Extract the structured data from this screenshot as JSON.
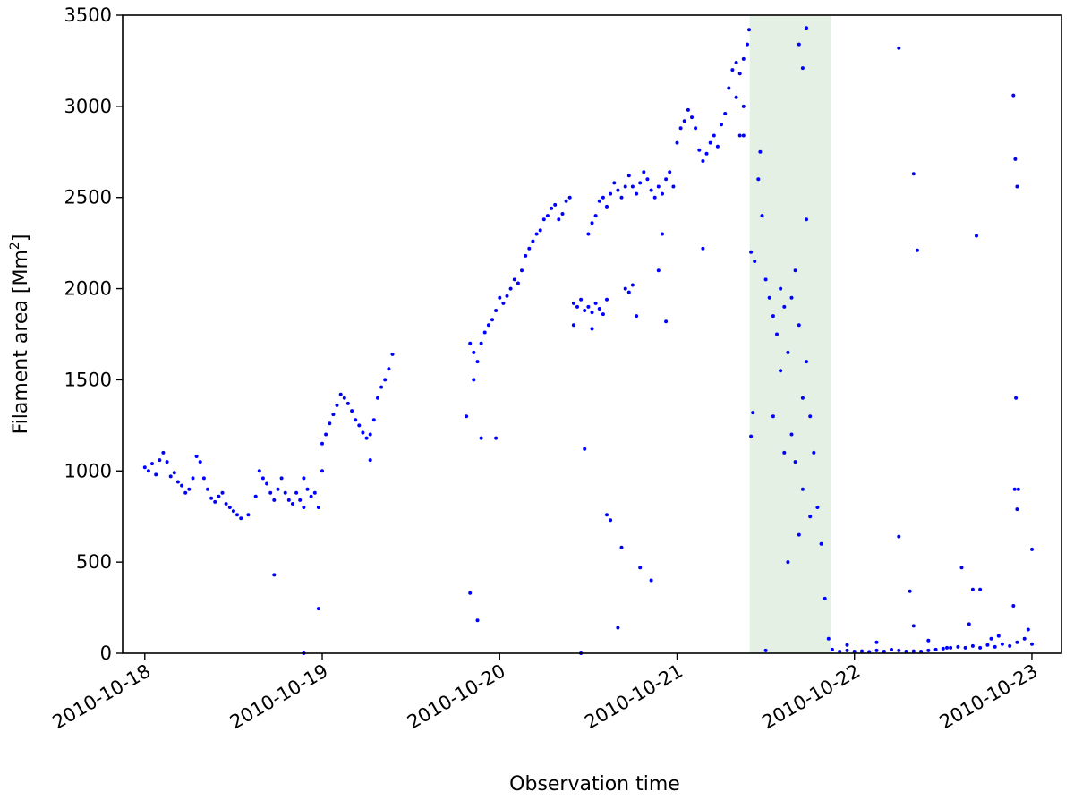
{
  "chart_data": {
    "type": "scatter",
    "xlabel": "Observation time",
    "ylabel": "Filament area [Mm",
    "ylabel_sup": "2",
    "ylabel_close": "]",
    "ylim": [
      0,
      3500
    ],
    "xlim": [
      "2010-10-17T21:00",
      "2010-10-23T04:00"
    ],
    "yticks": [
      0,
      500,
      1000,
      1500,
      2000,
      2500,
      3000,
      3500
    ],
    "xticks": [
      {
        "date": "2010-10-18",
        "label": "2010-10-18"
      },
      {
        "date": "2010-10-19",
        "label": "2010-10-19"
      },
      {
        "date": "2010-10-20",
        "label": "2010-10-20"
      },
      {
        "date": "2010-10-21",
        "label": "2010-10-21"
      },
      {
        "date": "2010-10-22",
        "label": "2010-10-22"
      },
      {
        "date": "2010-10-23",
        "label": "2010-10-23"
      }
    ],
    "shaded_interval": {
      "start": "2010-10-21T09:50",
      "end": "2010-10-21T20:50",
      "color": "#e3f0e3"
    },
    "point_color": "#0000ff",
    "grid": false,
    "points": [
      [
        "2010-10-18T00:00",
        1020
      ],
      [
        "2010-10-18T00:30",
        1000
      ],
      [
        "2010-10-18T01:00",
        1040
      ],
      [
        "2010-10-18T01:30",
        980
      ],
      [
        "2010-10-18T02:00",
        1060
      ],
      [
        "2010-10-18T02:30",
        1100
      ],
      [
        "2010-10-18T03:00",
        1050
      ],
      [
        "2010-10-18T03:30",
        970
      ],
      [
        "2010-10-18T04:00",
        990
      ],
      [
        "2010-10-18T04:30",
        940
      ],
      [
        "2010-10-18T05:00",
        920
      ],
      [
        "2010-10-18T05:30",
        880
      ],
      [
        "2010-10-18T06:00",
        900
      ],
      [
        "2010-10-18T06:30",
        960
      ],
      [
        "2010-10-18T07:00",
        1080
      ],
      [
        "2010-10-18T07:30",
        1050
      ],
      [
        "2010-10-18T08:00",
        960
      ],
      [
        "2010-10-18T08:30",
        900
      ],
      [
        "2010-10-18T09:00",
        850
      ],
      [
        "2010-10-18T09:30",
        830
      ],
      [
        "2010-10-18T10:00",
        860
      ],
      [
        "2010-10-18T10:30",
        880
      ],
      [
        "2010-10-18T11:00",
        820
      ],
      [
        "2010-10-18T11:30",
        800
      ],
      [
        "2010-10-18T12:00",
        780
      ],
      [
        "2010-10-18T12:30",
        760
      ],
      [
        "2010-10-18T13:00",
        740
      ],
      [
        "2010-10-18T14:00",
        760
      ],
      [
        "2010-10-18T15:00",
        860
      ],
      [
        "2010-10-18T15:30",
        1000
      ],
      [
        "2010-10-18T16:00",
        960
      ],
      [
        "2010-10-18T16:30",
        930
      ],
      [
        "2010-10-18T17:00",
        880
      ],
      [
        "2010-10-18T17:30",
        840
      ],
      [
        "2010-10-18T18:00",
        900
      ],
      [
        "2010-10-18T18:30",
        960
      ],
      [
        "2010-10-18T19:00",
        880
      ],
      [
        "2010-10-18T19:30",
        840
      ],
      [
        "2010-10-18T20:00",
        820
      ],
      [
        "2010-10-18T20:30",
        880
      ],
      [
        "2010-10-18T21:00",
        840
      ],
      [
        "2010-10-18T21:30",
        800
      ],
      [
        "2010-10-18T22:00",
        900
      ],
      [
        "2010-10-18T22:30",
        860
      ],
      [
        "2010-10-18T23:00",
        880
      ],
      [
        "2010-10-18T23:30",
        800
      ],
      [
        "2010-10-18T17:30",
        430
      ],
      [
        "2010-10-18T21:30",
        960
      ],
      [
        "2010-10-19T00:00",
        1150
      ],
      [
        "2010-10-19T00:30",
        1200
      ],
      [
        "2010-10-19T01:00",
        1260
      ],
      [
        "2010-10-19T01:30",
        1310
      ],
      [
        "2010-10-19T02:00",
        1360
      ],
      [
        "2010-10-19T02:30",
        1420
      ],
      [
        "2010-10-19T03:00",
        1400
      ],
      [
        "2010-10-19T03:30",
        1370
      ],
      [
        "2010-10-19T04:00",
        1330
      ],
      [
        "2010-10-19T04:30",
        1280
      ],
      [
        "2010-10-19T05:00",
        1250
      ],
      [
        "2010-10-19T05:30",
        1210
      ],
      [
        "2010-10-19T06:00",
        1180
      ],
      [
        "2010-10-19T06:30",
        1200
      ],
      [
        "2010-10-19T07:00",
        1280
      ],
      [
        "2010-10-19T07:30",
        1400
      ],
      [
        "2010-10-19T08:00",
        1460
      ],
      [
        "2010-10-19T08:30",
        1500
      ],
      [
        "2010-10-19T09:00",
        1560
      ],
      [
        "2010-10-19T09:30",
        1640
      ],
      [
        "2010-10-19T00:00",
        1000
      ],
      [
        "2010-10-18T23:30",
        245
      ],
      [
        "2010-10-18T21:30",
        0
      ],
      [
        "2010-10-19T06:30",
        1060
      ],
      [
        "2010-10-19T20:00",
        1700
      ],
      [
        "2010-10-19T20:30",
        1650
      ],
      [
        "2010-10-19T21:00",
        1600
      ],
      [
        "2010-10-19T21:30",
        1700
      ],
      [
        "2010-10-19T22:00",
        1760
      ],
      [
        "2010-10-19T22:30",
        1800
      ],
      [
        "2010-10-19T23:00",
        1830
      ],
      [
        "2010-10-19T23:30",
        1880
      ],
      [
        "2010-10-19T20:30",
        1500
      ],
      [
        "2010-10-19T21:30",
        1180
      ],
      [
        "2010-10-19T23:30",
        1180
      ],
      [
        "2010-10-19T20:00",
        330
      ],
      [
        "2010-10-19T21:00",
        180
      ],
      [
        "2010-10-19T19:30",
        1300
      ],
      [
        "2010-10-20T00:00",
        1950
      ],
      [
        "2010-10-20T00:30",
        1920
      ],
      [
        "2010-10-20T01:00",
        1960
      ],
      [
        "2010-10-20T01:30",
        2000
      ],
      [
        "2010-10-20T02:00",
        2050
      ],
      [
        "2010-10-20T02:30",
        2030
      ],
      [
        "2010-10-20T03:00",
        2100
      ],
      [
        "2010-10-20T03:30",
        2180
      ],
      [
        "2010-10-20T04:00",
        2220
      ],
      [
        "2010-10-20T04:30",
        2260
      ],
      [
        "2010-10-20T05:00",
        2300
      ],
      [
        "2010-10-20T05:30",
        2320
      ],
      [
        "2010-10-20T06:00",
        2380
      ],
      [
        "2010-10-20T06:30",
        2400
      ],
      [
        "2010-10-20T07:00",
        2440
      ],
      [
        "2010-10-20T07:30",
        2460
      ],
      [
        "2010-10-20T08:00",
        2380
      ],
      [
        "2010-10-20T08:30",
        2410
      ],
      [
        "2010-10-20T09:00",
        2480
      ],
      [
        "2010-10-20T09:30",
        2500
      ],
      [
        "2010-10-20T10:00",
        1920
      ],
      [
        "2010-10-20T10:30",
        1900
      ],
      [
        "2010-10-20T11:00",
        1940
      ],
      [
        "2010-10-20T11:30",
        1880
      ],
      [
        "2010-10-20T12:00",
        1900
      ],
      [
        "2010-10-20T12:30",
        1870
      ],
      [
        "2010-10-20T13:00",
        1920
      ],
      [
        "2010-10-20T13:30",
        1890
      ],
      [
        "2010-10-20T14:00",
        1860
      ],
      [
        "2010-10-20T10:00",
        1800
      ],
      [
        "2010-10-20T12:30",
        1780
      ],
      [
        "2010-10-20T14:30",
        1940
      ],
      [
        "2010-10-20T12:00",
        2300
      ],
      [
        "2010-10-20T12:30",
        2360
      ],
      [
        "2010-10-20T13:00",
        2400
      ],
      [
        "2010-10-20T13:30",
        2480
      ],
      [
        "2010-10-20T14:00",
        2500
      ],
      [
        "2010-10-20T14:30",
        2450
      ],
      [
        "2010-10-20T15:00",
        2520
      ],
      [
        "2010-10-20T15:30",
        2580
      ],
      [
        "2010-10-20T16:00",
        2540
      ],
      [
        "2010-10-20T16:30",
        2500
      ],
      [
        "2010-10-20T17:00",
        2560
      ],
      [
        "2010-10-20T17:30",
        2620
      ],
      [
        "2010-10-20T18:00",
        2560
      ],
      [
        "2010-10-20T18:30",
        2520
      ],
      [
        "2010-10-20T19:00",
        2580
      ],
      [
        "2010-10-20T19:30",
        2640
      ],
      [
        "2010-10-20T20:00",
        2600
      ],
      [
        "2010-10-20T20:30",
        2540
      ],
      [
        "2010-10-20T21:00",
        2500
      ],
      [
        "2010-10-20T21:30",
        2560
      ],
      [
        "2010-10-20T22:00",
        2520
      ],
      [
        "2010-10-20T22:30",
        2600
      ],
      [
        "2010-10-20T23:00",
        2640
      ],
      [
        "2010-10-20T23:30",
        2560
      ],
      [
        "2010-10-20T17:00",
        2000
      ],
      [
        "2010-10-20T17:30",
        1980
      ],
      [
        "2010-10-20T18:00",
        2020
      ],
      [
        "2010-10-20T21:30",
        2100
      ],
      [
        "2010-10-20T22:30",
        1820
      ],
      [
        "2010-10-20T18:30",
        1850
      ],
      [
        "2010-10-20T22:00",
        2300
      ],
      [
        "2010-10-20T11:00",
        0
      ],
      [
        "2010-10-20T11:30",
        1120
      ],
      [
        "2010-10-20T14:30",
        760
      ],
      [
        "2010-10-20T15:00",
        730
      ],
      [
        "2010-10-20T16:30",
        580
      ],
      [
        "2010-10-20T19:00",
        470
      ],
      [
        "2010-10-20T20:30",
        400
      ],
      [
        "2010-10-20T16:00",
        140
      ],
      [
        "2010-10-21T00:00",
        2800
      ],
      [
        "2010-10-21T00:30",
        2880
      ],
      [
        "2010-10-21T01:00",
        2920
      ],
      [
        "2010-10-21T01:30",
        2980
      ],
      [
        "2010-10-21T02:00",
        2940
      ],
      [
        "2010-10-21T02:30",
        2880
      ],
      [
        "2010-10-21T03:00",
        2760
      ],
      [
        "2010-10-21T03:30",
        2700
      ],
      [
        "2010-10-21T04:00",
        2740
      ],
      [
        "2010-10-21T04:30",
        2800
      ],
      [
        "2010-10-21T05:00",
        2840
      ],
      [
        "2010-10-21T05:30",
        2780
      ],
      [
        "2010-10-21T06:00",
        2900
      ],
      [
        "2010-10-21T06:30",
        2960
      ],
      [
        "2010-10-21T07:00",
        3100
      ],
      [
        "2010-10-21T07:30",
        3200
      ],
      [
        "2010-10-21T08:00",
        3240
      ],
      [
        "2010-10-21T08:30",
        3180
      ],
      [
        "2010-10-21T09:00",
        3260
      ],
      [
        "2010-10-21T09:30",
        3340
      ],
      [
        "2010-10-21T09:45",
        3420
      ],
      [
        "2010-10-21T08:00",
        3050
      ],
      [
        "2010-10-21T09:00",
        3000
      ],
      [
        "2010-10-21T08:30",
        2840
      ],
      [
        "2010-10-21T09:00",
        2840
      ],
      [
        "2010-10-21T03:30",
        2220
      ],
      [
        "2010-10-21T10:00",
        2200
      ],
      [
        "2010-10-21T10:30",
        2150
      ],
      [
        "2010-10-21T11:00",
        2600
      ],
      [
        "2010-10-21T11:15",
        2750
      ],
      [
        "2010-10-21T11:30",
        2400
      ],
      [
        "2010-10-21T12:00",
        2050
      ],
      [
        "2010-10-21T12:30",
        1950
      ],
      [
        "2010-10-21T13:00",
        1850
      ],
      [
        "2010-10-21T13:30",
        1750
      ],
      [
        "2010-10-21T14:00",
        2000
      ],
      [
        "2010-10-21T14:30",
        1900
      ],
      [
        "2010-10-21T15:00",
        1650
      ],
      [
        "2010-10-21T15:30",
        1950
      ],
      [
        "2010-10-21T16:00",
        2100
      ],
      [
        "2010-10-21T16:30",
        1800
      ],
      [
        "2010-10-21T17:00",
        1400
      ],
      [
        "2010-10-21T17:30",
        1600
      ],
      [
        "2010-10-21T18:00",
        1300
      ],
      [
        "2010-10-21T18:30",
        1100
      ],
      [
        "2010-10-21T19:00",
        800
      ],
      [
        "2010-10-21T19:30",
        600
      ],
      [
        "2010-10-21T20:00",
        300
      ],
      [
        "2010-10-21T20:30",
        80
      ],
      [
        "2010-10-21T13:00",
        1300
      ],
      [
        "2010-10-21T14:00",
        1550
      ],
      [
        "2010-10-21T14:30",
        1100
      ],
      [
        "2010-10-21T15:30",
        1200
      ],
      [
        "2010-10-21T16:00",
        1050
      ],
      [
        "2010-10-21T16:30",
        650
      ],
      [
        "2010-10-21T17:00",
        900
      ],
      [
        "2010-10-21T18:00",
        750
      ],
      [
        "2010-10-21T15:00",
        500
      ],
      [
        "2010-10-21T17:30",
        2380
      ],
      [
        "2010-10-21T16:30",
        3340
      ],
      [
        "2010-10-21T17:00",
        3210
      ],
      [
        "2010-10-21T17:30",
        3430
      ],
      [
        "2010-10-21T10:15",
        1320
      ],
      [
        "2010-10-21T10:00",
        1190
      ],
      [
        "2010-10-21T12:00",
        15
      ],
      [
        "2010-10-21T21:00",
        20
      ],
      [
        "2010-10-21T22:00",
        10
      ],
      [
        "2010-10-21T23:00",
        15
      ],
      [
        "2010-10-22T00:00",
        10
      ],
      [
        "2010-10-22T01:00",
        12
      ],
      [
        "2010-10-22T02:00",
        8
      ],
      [
        "2010-10-22T03:00",
        15
      ],
      [
        "2010-10-22T04:00",
        10
      ],
      [
        "2010-10-22T05:00",
        20
      ],
      [
        "2010-10-22T06:00",
        15
      ],
      [
        "2010-10-22T07:00",
        10
      ],
      [
        "2010-10-22T08:00",
        12
      ],
      [
        "2010-10-22T09:00",
        10
      ],
      [
        "2010-10-22T10:00",
        15
      ],
      [
        "2010-10-22T11:00",
        20
      ],
      [
        "2010-10-22T12:00",
        25
      ],
      [
        "2010-10-22T13:00",
        30
      ],
      [
        "2010-10-22T14:00",
        35
      ],
      [
        "2010-10-22T15:00",
        30
      ],
      [
        "2010-10-22T16:00",
        40
      ],
      [
        "2010-10-22T17:00",
        30
      ],
      [
        "2010-10-22T18:00",
        45
      ],
      [
        "2010-10-22T19:00",
        35
      ],
      [
        "2010-10-22T20:00",
        50
      ],
      [
        "2010-10-22T21:00",
        40
      ],
      [
        "2010-10-22T22:00",
        60
      ],
      [
        "2010-10-22T23:00",
        80
      ],
      [
        "2010-10-23T00:00",
        50
      ],
      [
        "2010-10-22T06:00",
        3320
      ],
      [
        "2010-10-22T08:00",
        2630
      ],
      [
        "2010-10-22T08:30",
        2210
      ],
      [
        "2010-10-22T06:00",
        640
      ],
      [
        "2010-10-22T07:30",
        340
      ],
      [
        "2010-10-22T08:00",
        150
      ],
      [
        "2010-10-22T12:30",
        30
      ],
      [
        "2010-10-22T14:30",
        470
      ],
      [
        "2010-10-22T16:30",
        2290
      ],
      [
        "2010-10-22T16:00",
        350
      ],
      [
        "2010-10-22T17:00",
        350
      ],
      [
        "2010-10-22T15:30",
        160
      ],
      [
        "2010-10-22T21:30",
        3060
      ],
      [
        "2010-10-22T21:45",
        2710
      ],
      [
        "2010-10-22T22:00",
        2560
      ],
      [
        "2010-10-22T21:50",
        1400
      ],
      [
        "2010-10-22T21:40",
        900
      ],
      [
        "2010-10-22T22:00",
        790
      ],
      [
        "2010-10-22T22:10",
        900
      ],
      [
        "2010-10-22T21:30",
        260
      ],
      [
        "2010-10-23T00:00",
        570
      ],
      [
        "2010-10-22T23:30",
        130
      ],
      [
        "2010-10-22T10:00",
        70
      ],
      [
        "2010-10-22T03:00",
        60
      ],
      [
        "2010-10-21T23:00",
        45
      ],
      [
        "2010-10-22T18:30",
        80
      ],
      [
        "2010-10-22T19:30",
        95
      ]
    ]
  }
}
